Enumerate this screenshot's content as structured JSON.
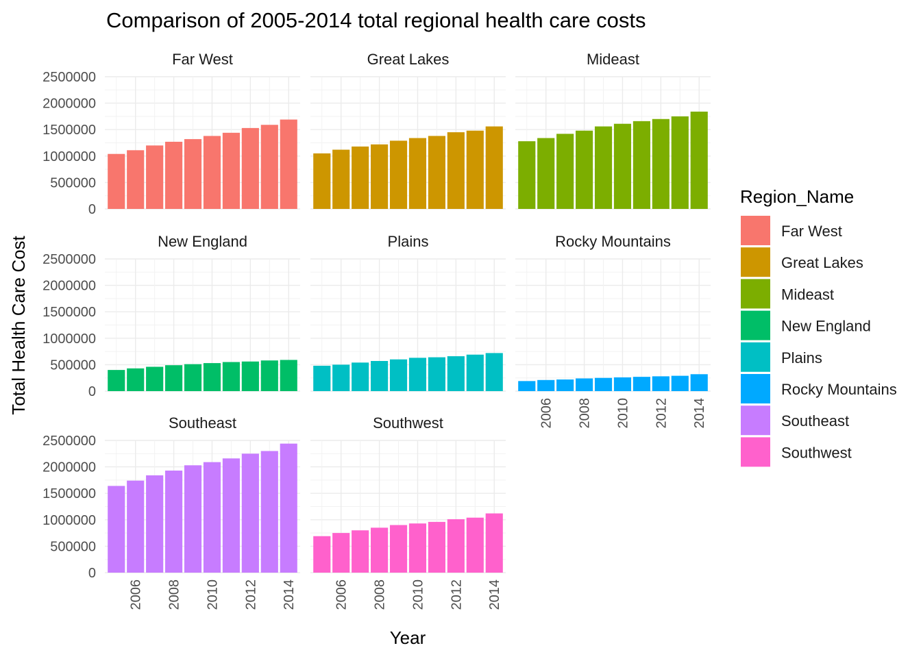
{
  "chart_data": {
    "type": "bar",
    "title": "Comparison of 2005-2014 total regional health care costs",
    "xlabel": "Year",
    "ylabel": "Total Health Care Cost",
    "ylim": [
      0,
      2500000
    ],
    "yticks": [
      "0",
      "500000",
      "1000000",
      "1500000",
      "2000000",
      "2500000"
    ],
    "xticks": [
      "2006",
      "2008",
      "2010",
      "2012",
      "2014"
    ],
    "x": [
      2005,
      2006,
      2007,
      2008,
      2009,
      2010,
      2011,
      2012,
      2013,
      2014
    ],
    "grid": true,
    "legend": {
      "title": "Region_Name",
      "position": "right"
    },
    "series": [
      {
        "name": "Far West",
        "color": "#F8766D",
        "values": [
          1040000,
          1110000,
          1200000,
          1270000,
          1320000,
          1380000,
          1440000,
          1530000,
          1590000,
          1690000
        ]
      },
      {
        "name": "Great Lakes",
        "color": "#CD9600",
        "values": [
          1050000,
          1120000,
          1180000,
          1220000,
          1290000,
          1340000,
          1380000,
          1450000,
          1480000,
          1560000
        ]
      },
      {
        "name": "Mideast",
        "color": "#7CAE00",
        "values": [
          1280000,
          1340000,
          1420000,
          1480000,
          1560000,
          1610000,
          1660000,
          1700000,
          1750000,
          1840000
        ]
      },
      {
        "name": "New England",
        "color": "#00BE67",
        "values": [
          400000,
          430000,
          460000,
          490000,
          510000,
          530000,
          550000,
          560000,
          580000,
          590000
        ]
      },
      {
        "name": "Plains",
        "color": "#00BFC4",
        "values": [
          480000,
          500000,
          540000,
          570000,
          600000,
          630000,
          640000,
          660000,
          690000,
          720000
        ]
      },
      {
        "name": "Rocky Mountains",
        "color": "#00A9FF",
        "values": [
          190000,
          210000,
          220000,
          240000,
          250000,
          260000,
          270000,
          280000,
          290000,
          320000
        ]
      },
      {
        "name": "Southeast",
        "color": "#C77CFF",
        "values": [
          1640000,
          1740000,
          1840000,
          1930000,
          2030000,
          2090000,
          2160000,
          2250000,
          2300000,
          2440000
        ]
      },
      {
        "name": "Southwest",
        "color": "#FF61CC",
        "values": [
          690000,
          750000,
          800000,
          850000,
          900000,
          930000,
          960000,
          1010000,
          1040000,
          1120000
        ]
      }
    ]
  }
}
